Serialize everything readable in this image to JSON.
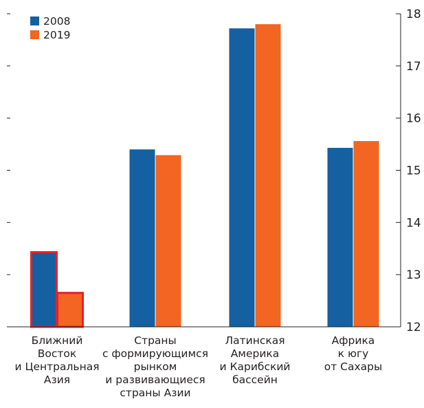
{
  "chart_data": {
    "type": "bar",
    "categories": [
      [
        "Ближний",
        "Восток",
        "и Центральная",
        "Азия"
      ],
      [
        "Страны",
        "с формирующимся",
        "рынком",
        "и развивающиеся",
        "страны Азии"
      ],
      [
        "Латинская",
        "Америка",
        "и Карибский",
        "бассейн"
      ],
      [
        "Африка",
        "к югу",
        "от Сахары"
      ]
    ],
    "series": [
      {
        "name": "2008",
        "color": "#1460a0",
        "values": [
          13.43,
          15.4,
          17.72,
          15.43
        ]
      },
      {
        "name": "2019",
        "color": "#f26522",
        "values": [
          12.65,
          15.29,
          17.8,
          15.56
        ]
      }
    ],
    "highlight": {
      "category_index": 0,
      "color": "#e8202a"
    },
    "yaxis": {
      "side": "right",
      "ylim": [
        12,
        18
      ],
      "ticks": [
        "12",
        "13",
        "14",
        "15",
        "16",
        "17",
        "18"
      ]
    },
    "legend": {
      "position": "top-left"
    },
    "grid": false
  }
}
